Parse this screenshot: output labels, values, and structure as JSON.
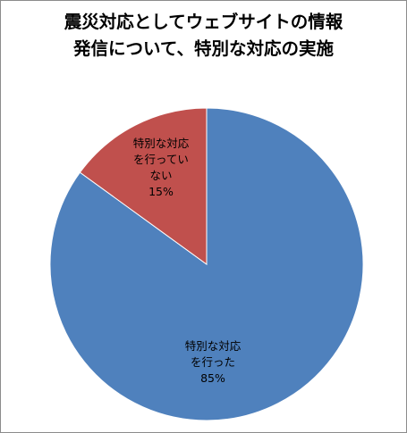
{
  "chart_data": {
    "type": "pie",
    "title_lines": [
      "震災対応としてウェブサイトの情報",
      "発信について、特別な対応の実施"
    ],
    "slices": [
      {
        "label_lines": [
          "特別な対応",
          "を行った"
        ],
        "value": 85,
        "value_label": "85%",
        "color": "#4f81bd"
      },
      {
        "label_lines": [
          "特別な対応",
          "を行ってい",
          "ない"
        ],
        "value": 15,
        "value_label": "15%",
        "color": "#c0504d"
      }
    ],
    "start_at": "12 o'clock",
    "direction": "clockwise",
    "legend": "none",
    "data_labels": "inside"
  }
}
